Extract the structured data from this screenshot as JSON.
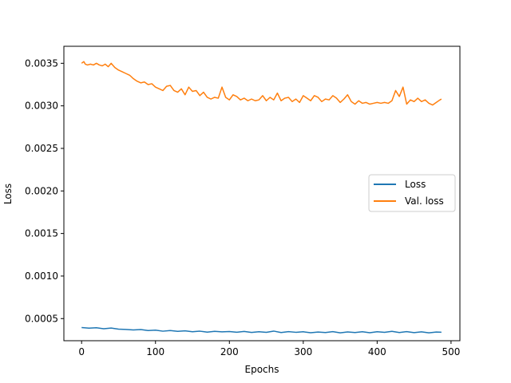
{
  "chart_data": {
    "type": "line",
    "title": "",
    "xlabel": "Epochs",
    "ylabel": "Loss",
    "xlim": [
      -24,
      512
    ],
    "ylim": [
      0.00024,
      0.0037
    ],
    "x_ticks": [
      0,
      100,
      200,
      300,
      400,
      500
    ],
    "x_tick_labels": [
      "0",
      "100",
      "200",
      "300",
      "400",
      "500"
    ],
    "y_ticks": [
      0.0005,
      0.001,
      0.0015,
      0.002,
      0.0025,
      0.003,
      0.0035
    ],
    "y_tick_labels": [
      "0.0005",
      "0.0010",
      "0.0015",
      "0.0020",
      "0.0025",
      "0.0030",
      "0.0035"
    ],
    "grid": false,
    "legend_position": "center-right",
    "series": [
      {
        "name": "Loss",
        "color": "#1f77b4",
        "x": [
          0,
          10,
          20,
          30,
          40,
          50,
          60,
          70,
          80,
          90,
          100,
          110,
          120,
          130,
          140,
          150,
          160,
          170,
          180,
          190,
          200,
          210,
          220,
          230,
          240,
          250,
          260,
          270,
          280,
          290,
          300,
          310,
          320,
          330,
          340,
          350,
          360,
          370,
          380,
          390,
          400,
          410,
          420,
          430,
          440,
          450,
          460,
          470,
          480,
          487
        ],
        "values": [
          0.000395,
          0.000388,
          0.000392,
          0.000381,
          0.000389,
          0.000376,
          0.000372,
          0.000366,
          0.000371,
          0.00036,
          0.000364,
          0.000352,
          0.00036,
          0.00035,
          0.000356,
          0.000346,
          0.000352,
          0.000341,
          0.00035,
          0.000344,
          0.000348,
          0.00034,
          0.000349,
          0.000337,
          0.000346,
          0.000338,
          0.000353,
          0.000336,
          0.000347,
          0.000339,
          0.000345,
          0.000334,
          0.000342,
          0.000336,
          0.000347,
          0.000333,
          0.000343,
          0.000336,
          0.000345,
          0.000334,
          0.000346,
          0.000338,
          0.00035,
          0.000336,
          0.000347,
          0.000335,
          0.000344,
          0.000333,
          0.000342,
          0.00034
        ]
      },
      {
        "name": "Val. loss",
        "color": "#ff7f0e",
        "x": [
          0,
          3,
          5,
          8,
          12,
          16,
          20,
          24,
          28,
          32,
          36,
          40,
          45,
          50,
          55,
          60,
          65,
          70,
          75,
          80,
          85,
          90,
          95,
          100,
          105,
          110,
          115,
          120,
          125,
          130,
          135,
          140,
          145,
          150,
          155,
          160,
          165,
          170,
          175,
          180,
          185,
          190,
          195,
          200,
          205,
          210,
          215,
          220,
          225,
          230,
          235,
          240,
          245,
          250,
          255,
          260,
          265,
          270,
          275,
          280,
          285,
          290,
          295,
          300,
          305,
          310,
          315,
          320,
          325,
          330,
          335,
          340,
          345,
          350,
          355,
          360,
          365,
          370,
          375,
          380,
          385,
          390,
          395,
          400,
          405,
          410,
          415,
          420,
          425,
          430,
          435,
          440,
          445,
          450,
          455,
          460,
          465,
          470,
          475,
          480,
          485,
          487
        ],
        "values": [
          0.0035,
          0.00352,
          0.00349,
          0.00348,
          0.00349,
          0.00348,
          0.0035,
          0.00348,
          0.00347,
          0.00349,
          0.00346,
          0.0035,
          0.00345,
          0.00342,
          0.0034,
          0.00338,
          0.00336,
          0.00332,
          0.00329,
          0.00327,
          0.00328,
          0.00325,
          0.00326,
          0.00322,
          0.0032,
          0.00318,
          0.00323,
          0.00324,
          0.00318,
          0.00316,
          0.0032,
          0.00313,
          0.00322,
          0.00317,
          0.00318,
          0.00312,
          0.00316,
          0.0031,
          0.00308,
          0.0031,
          0.00309,
          0.00322,
          0.0031,
          0.00307,
          0.00313,
          0.00311,
          0.00307,
          0.00309,
          0.00306,
          0.00308,
          0.00306,
          0.00307,
          0.00312,
          0.00306,
          0.0031,
          0.00307,
          0.00315,
          0.00306,
          0.00309,
          0.0031,
          0.00305,
          0.00308,
          0.00304,
          0.00312,
          0.00309,
          0.00306,
          0.00312,
          0.0031,
          0.00305,
          0.00308,
          0.00307,
          0.00312,
          0.00309,
          0.00304,
          0.00308,
          0.00313,
          0.00305,
          0.00302,
          0.00306,
          0.00303,
          0.00304,
          0.00302,
          0.00303,
          0.00304,
          0.00303,
          0.00304,
          0.00303,
          0.00306,
          0.00318,
          0.00311,
          0.00322,
          0.00302,
          0.00307,
          0.00305,
          0.00309,
          0.00305,
          0.00307,
          0.00303,
          0.00301,
          0.00304,
          0.00307,
          0.00308
        ]
      }
    ]
  }
}
